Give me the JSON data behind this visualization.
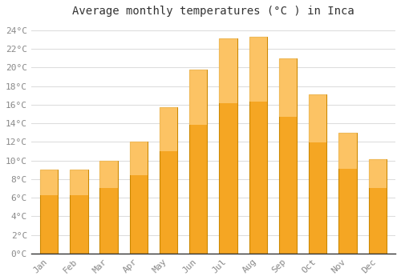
{
  "title": "Average monthly temperatures (°C ) in Inca",
  "months": [
    "Jan",
    "Feb",
    "Mar",
    "Apr",
    "May",
    "Jun",
    "Jul",
    "Aug",
    "Sep",
    "Oct",
    "Nov",
    "Dec"
  ],
  "temperatures": [
    9,
    9,
    10,
    12,
    15.7,
    19.8,
    23.1,
    23.3,
    21,
    17.1,
    13,
    10.1
  ],
  "bar_color_bottom": "#F5A623",
  "bar_color_top": "#FFD080",
  "bar_edge_color": "#CC8800",
  "background_color": "#ffffff",
  "plot_bg_color": "#ffffff",
  "grid_color": "#dddddd",
  "ylim": [
    0,
    25
  ],
  "yticks": [
    0,
    2,
    4,
    6,
    8,
    10,
    12,
    14,
    16,
    18,
    20,
    22,
    24
  ],
  "title_fontsize": 10,
  "tick_fontsize": 8,
  "tick_color": "#888888",
  "title_color": "#333333",
  "bar_width": 0.6
}
